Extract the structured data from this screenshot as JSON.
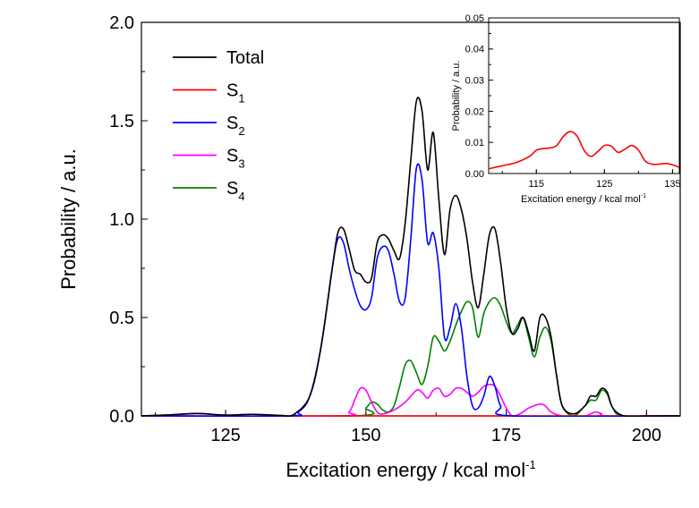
{
  "chart_data": [
    {
      "type": "line",
      "xlabel": "Excitation energy / kcal mol",
      "xlabel_sup": "-1",
      "ylabel": "Probability / a.u.",
      "xlim": [
        110,
        206
      ],
      "ylim": [
        0,
        2.0
      ],
      "xticks": [
        125,
        150,
        175,
        200
      ],
      "yticks": [
        0.0,
        0.5,
        1.0,
        1.5,
        2.0
      ],
      "ytick_labels": [
        "0.0",
        "0.5",
        "1.0",
        "1.5",
        "2.0"
      ],
      "legend_placement": "top-left",
      "series": [
        {
          "name": "Total",
          "sub": "",
          "color": "#000000",
          "points": [
            [
              110,
              0
            ],
            [
              115,
              0.005
            ],
            [
              120,
              0.012
            ],
            [
              125,
              0.004
            ],
            [
              130,
              0.008
            ],
            [
              135,
              0.002
            ],
            [
              137,
              0.005
            ],
            [
              140,
              0.1
            ],
            [
              142,
              0.35
            ],
            [
              144,
              0.75
            ],
            [
              145,
              0.93
            ],
            [
              146,
              0.95
            ],
            [
              147,
              0.85
            ],
            [
              148,
              0.74
            ],
            [
              149,
              0.72
            ],
            [
              150,
              0.68
            ],
            [
              151,
              0.7
            ],
            [
              152,
              0.88
            ],
            [
              153,
              0.92
            ],
            [
              154,
              0.9
            ],
            [
              155,
              0.84
            ],
            [
              156,
              0.8
            ],
            [
              157,
              0.98
            ],
            [
              158,
              1.3
            ],
            [
              159,
              1.6
            ],
            [
              160,
              1.55
            ],
            [
              161,
              1.25
            ],
            [
              162,
              1.44
            ],
            [
              163,
              1.1
            ],
            [
              164,
              0.82
            ],
            [
              165,
              1.05
            ],
            [
              166,
              1.12
            ],
            [
              167,
              1.05
            ],
            [
              168,
              0.9
            ],
            [
              169,
              0.68
            ],
            [
              170,
              0.55
            ],
            [
              171,
              0.72
            ],
            [
              172,
              0.92
            ],
            [
              173,
              0.95
            ],
            [
              174,
              0.78
            ],
            [
              175,
              0.55
            ],
            [
              176,
              0.42
            ],
            [
              177,
              0.44
            ],
            [
              178,
              0.5
            ],
            [
              179,
              0.42
            ],
            [
              180,
              0.33
            ],
            [
              181,
              0.5
            ],
            [
              182,
              0.5
            ],
            [
              183,
              0.4
            ],
            [
              184,
              0.2
            ],
            [
              185,
              0.05
            ],
            [
              187,
              0.01
            ],
            [
              189,
              0.05
            ],
            [
              190,
              0.1
            ],
            [
              191,
              0.1
            ],
            [
              192,
              0.14
            ],
            [
              193,
              0.12
            ],
            [
              194,
              0.04
            ],
            [
              196,
              0
            ],
            [
              200,
              0
            ],
            [
              206,
              0
            ]
          ]
        },
        {
          "name": "S",
          "sub": "1",
          "color": "#ff0000",
          "points": [
            [
              110,
              0
            ],
            [
              115,
              0.005
            ],
            [
              120,
              0.012
            ],
            [
              125,
              0.004
            ],
            [
              130,
              0.008
            ],
            [
              135,
              0.002
            ],
            [
              138,
              0
            ],
            [
              206,
              0
            ]
          ]
        },
        {
          "name": "S",
          "sub": "2",
          "color": "#0000ff",
          "points": [
            [
              110,
              0
            ],
            [
              136,
              0
            ],
            [
              138,
              0.02
            ],
            [
              140,
              0.1
            ],
            [
              142,
              0.35
            ],
            [
              144,
              0.75
            ],
            [
              145,
              0.9
            ],
            [
              146,
              0.88
            ],
            [
              147,
              0.75
            ],
            [
              148,
              0.64
            ],
            [
              149,
              0.56
            ],
            [
              150,
              0.54
            ],
            [
              151,
              0.6
            ],
            [
              152,
              0.8
            ],
            [
              153,
              0.86
            ],
            [
              154,
              0.84
            ],
            [
              155,
              0.72
            ],
            [
              156,
              0.58
            ],
            [
              157,
              0.6
            ],
            [
              158,
              0.9
            ],
            [
              159,
              1.26
            ],
            [
              160,
              1.2
            ],
            [
              161,
              0.88
            ],
            [
              162,
              0.93
            ],
            [
              163,
              0.75
            ],
            [
              164,
              0.4
            ],
            [
              165,
              0.45
            ],
            [
              166,
              0.57
            ],
            [
              167,
              0.45
            ],
            [
              168,
              0.2
            ],
            [
              169,
              0.05
            ],
            [
              170,
              0.04
            ],
            [
              171,
              0.1
            ],
            [
              172,
              0.2
            ],
            [
              173,
              0.15
            ],
            [
              174,
              0.05
            ],
            [
              176,
              0
            ],
            [
              206,
              0
            ]
          ]
        },
        {
          "name": "S",
          "sub": "3",
          "color": "#ff00ff",
          "points": [
            [
              110,
              0
            ],
            [
              145,
              0
            ],
            [
              147,
              0.02
            ],
            [
              148,
              0.08
            ],
            [
              149,
              0.14
            ],
            [
              150,
              0.13
            ],
            [
              151,
              0.07
            ],
            [
              152,
              0.02
            ],
            [
              153,
              0.01
            ],
            [
              155,
              0.03
            ],
            [
              157,
              0.07
            ],
            [
              159,
              0.13
            ],
            [
              160,
              0.12
            ],
            [
              161,
              0.09
            ],
            [
              162,
              0.13
            ],
            [
              163,
              0.14
            ],
            [
              164,
              0.1
            ],
            [
              165,
              0.11
            ],
            [
              166,
              0.14
            ],
            [
              167,
              0.14
            ],
            [
              168,
              0.12
            ],
            [
              169,
              0.1
            ],
            [
              170,
              0.12
            ],
            [
              171,
              0.15
            ],
            [
              172,
              0.16
            ],
            [
              173,
              0.15
            ],
            [
              174,
              0.1
            ],
            [
              175,
              0.04
            ],
            [
              176,
              0
            ],
            [
              177,
              0.005
            ],
            [
              178,
              0.02
            ],
            [
              179,
              0.04
            ],
            [
              181,
              0.06
            ],
            [
              182,
              0.05
            ],
            [
              183,
              0.02
            ],
            [
              185,
              0
            ],
            [
              189,
              0
            ],
            [
              190,
              0.01
            ],
            [
              191,
              0.02
            ],
            [
              192,
              0.01
            ],
            [
              193,
              0
            ],
            [
              206,
              0
            ]
          ]
        },
        {
          "name": "S",
          "sub": "4",
          "color": "#008000",
          "points": [
            [
              110,
              0
            ],
            [
              148,
              0
            ],
            [
              150,
              0.04
            ],
            [
              151,
              0.07
            ],
            [
              152,
              0.06
            ],
            [
              153,
              0.03
            ],
            [
              154,
              0.02
            ],
            [
              155,
              0.05
            ],
            [
              156,
              0.15
            ],
            [
              157,
              0.26
            ],
            [
              158,
              0.28
            ],
            [
              159,
              0.22
            ],
            [
              160,
              0.16
            ],
            [
              161,
              0.25
            ],
            [
              162,
              0.4
            ],
            [
              163,
              0.38
            ],
            [
              164,
              0.33
            ],
            [
              165,
              0.38
            ],
            [
              166,
              0.46
            ],
            [
              167,
              0.53
            ],
            [
              168,
              0.58
            ],
            [
              169,
              0.55
            ],
            [
              170,
              0.4
            ],
            [
              171,
              0.52
            ],
            [
              172,
              0.58
            ],
            [
              173,
              0.6
            ],
            [
              174,
              0.56
            ],
            [
              175,
              0.48
            ],
            [
              176,
              0.42
            ],
            [
              177,
              0.46
            ],
            [
              178,
              0.5
            ],
            [
              179,
              0.4
            ],
            [
              180,
              0.3
            ],
            [
              181,
              0.4
            ],
            [
              182,
              0.45
            ],
            [
              183,
              0.38
            ],
            [
              184,
              0.2
            ],
            [
              185,
              0.05
            ],
            [
              187,
              0
            ],
            [
              189,
              0.05
            ],
            [
              190,
              0.08
            ],
            [
              191,
              0.08
            ],
            [
              192,
              0.13
            ],
            [
              193,
              0.11
            ],
            [
              194,
              0.04
            ],
            [
              196,
              0
            ],
            [
              206,
              0
            ]
          ]
        }
      ]
    },
    {
      "type": "line",
      "xlabel": "Excitation energy / kcal mol",
      "xlabel_sup": "-1",
      "ylabel": "Probability / a.u.",
      "xlim": [
        108,
        136
      ],
      "ylim": [
        0,
        0.05
      ],
      "xticks": [
        115,
        125,
        135
      ],
      "yticks": [
        0.0,
        0.01,
        0.02,
        0.03,
        0.04,
        0.05
      ],
      "ytick_labels": [
        "0.00",
        "0.01",
        "0.02",
        "0.03",
        "0.04",
        "0.05"
      ],
      "series": [
        {
          "name": "S1",
          "color": "#ff0000",
          "points": [
            [
              108,
              0.0015
            ],
            [
              110,
              0.0025
            ],
            [
              112,
              0.0035
            ],
            [
              114,
              0.0055
            ],
            [
              115,
              0.0075
            ],
            [
              116,
              0.008
            ],
            [
              117,
              0.0082
            ],
            [
              118,
              0.009
            ],
            [
              119,
              0.012
            ],
            [
              120,
              0.0135
            ],
            [
              121,
              0.012
            ],
            [
              122,
              0.0075
            ],
            [
              123,
              0.0055
            ],
            [
              124,
              0.007
            ],
            [
              125,
              0.009
            ],
            [
              126,
              0.0088
            ],
            [
              127,
              0.0068
            ],
            [
              128,
              0.0078
            ],
            [
              129,
              0.009
            ],
            [
              130,
              0.0075
            ],
            [
              131,
              0.004
            ],
            [
              132,
              0.003
            ],
            [
              133,
              0.003
            ],
            [
              134,
              0.0032
            ],
            [
              135,
              0.0028
            ],
            [
              136,
              0.002
            ]
          ]
        }
      ]
    }
  ]
}
